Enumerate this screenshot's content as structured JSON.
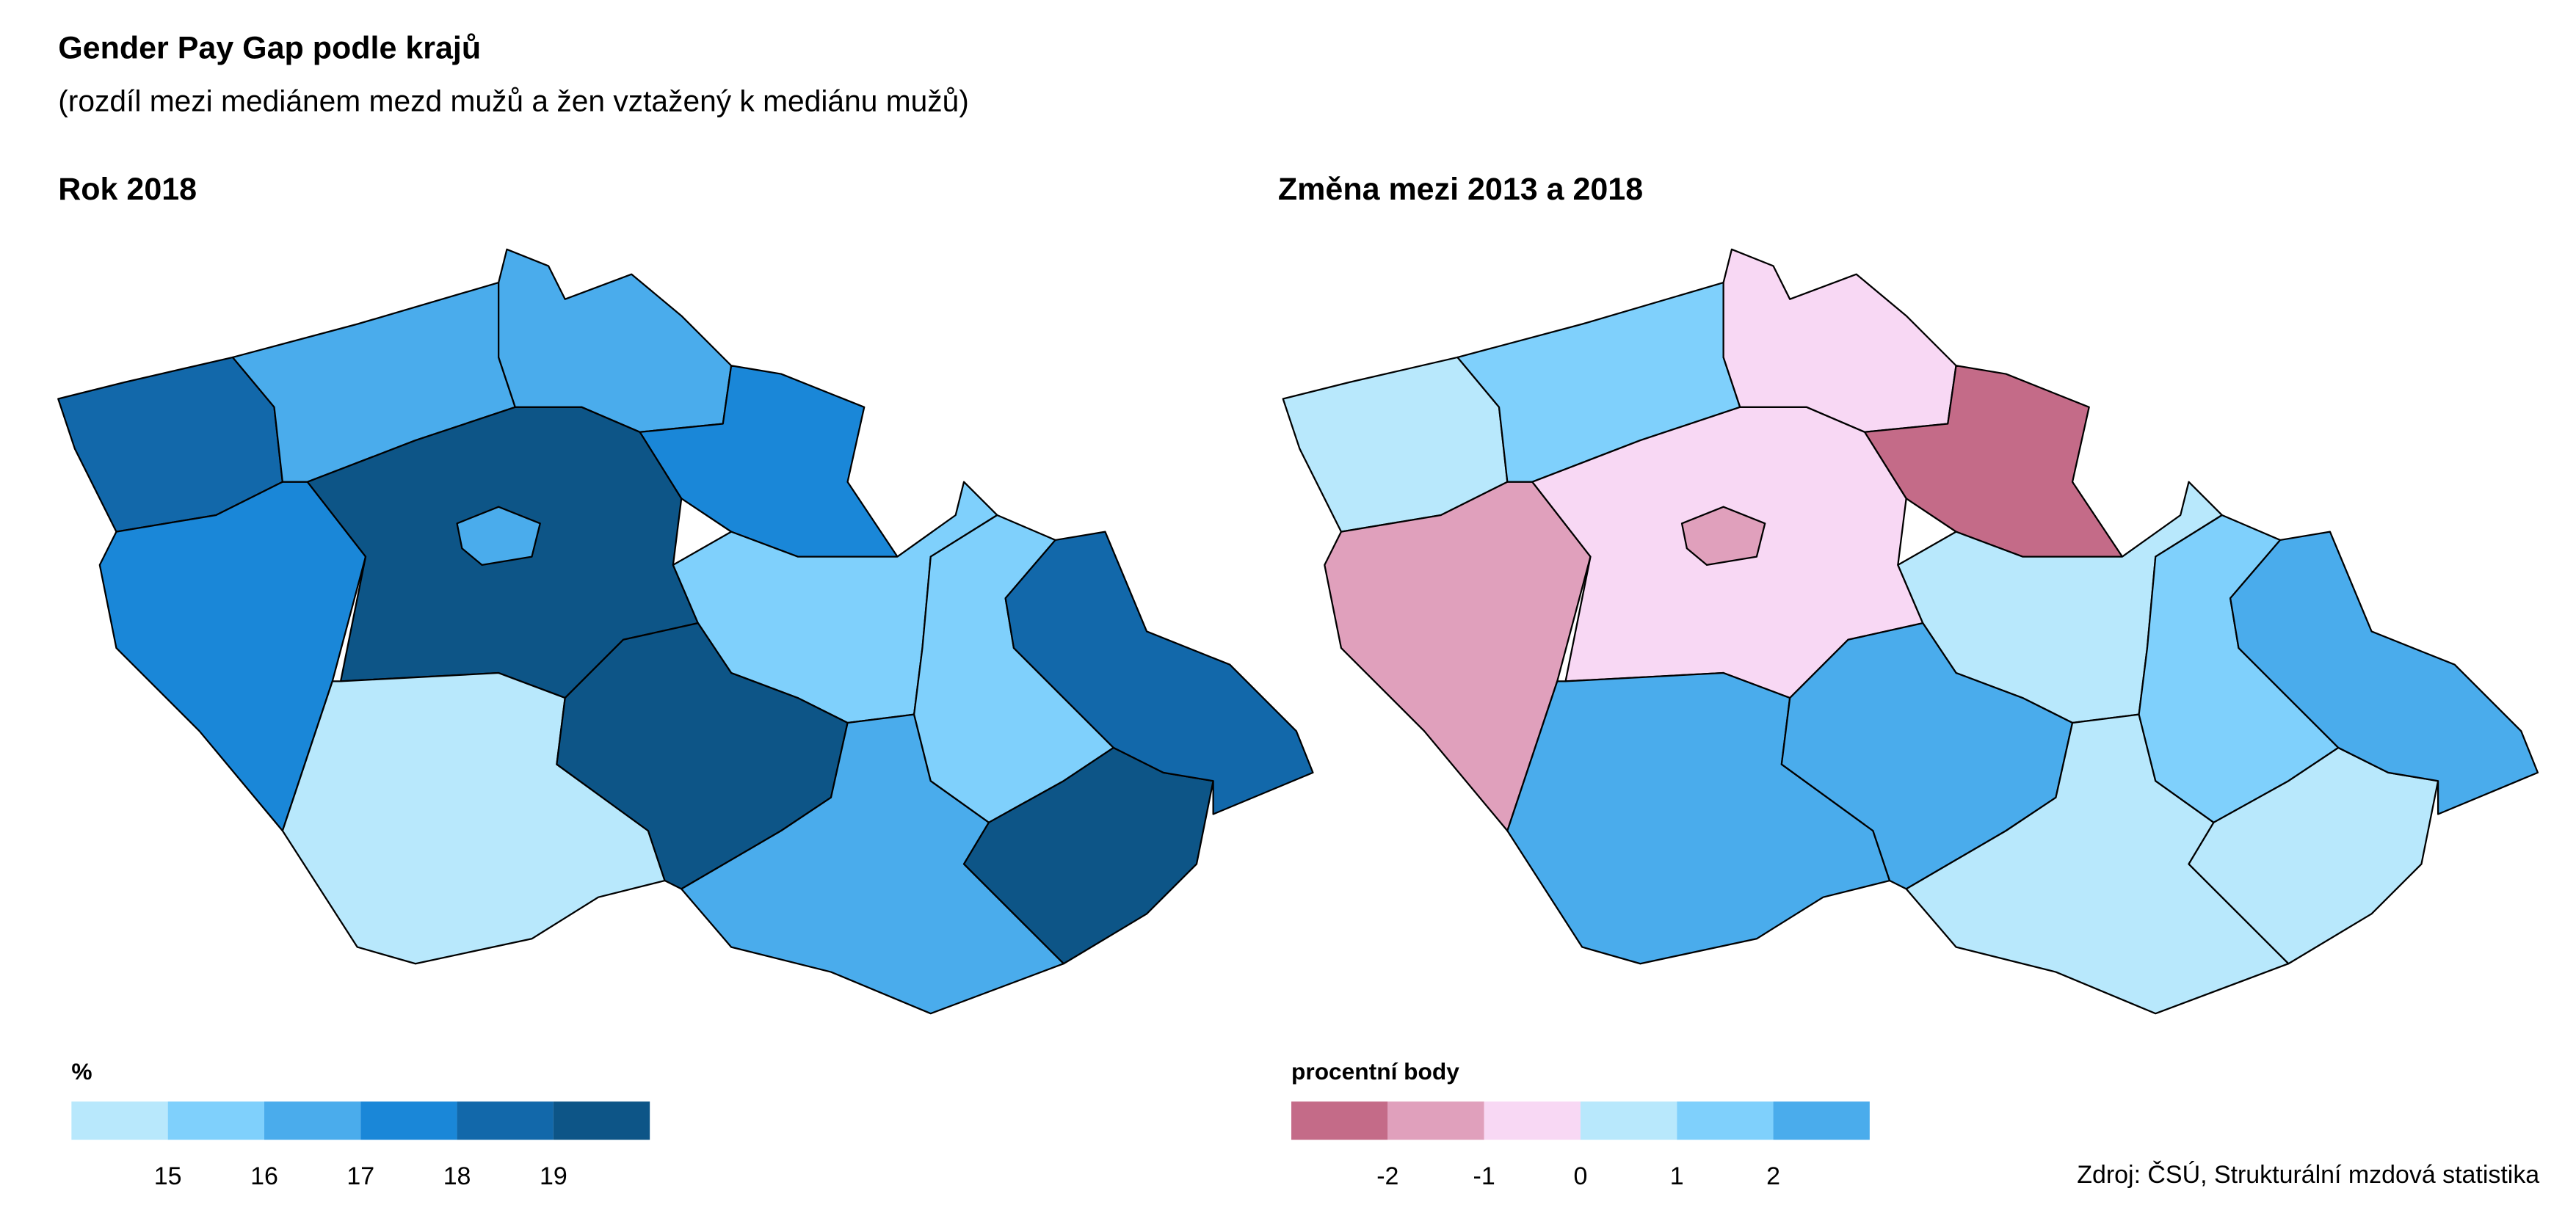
{
  "title": "Gender Pay Gap podle krajů",
  "subtitle": "(rozdíl mezi mediánem mezd mužů a žen vztažený k mediánu mužů)",
  "source": "Zdroj: ČSÚ, Strukturální mzdová statistika",
  "chart_data": [
    {
      "type": "choropleth",
      "title": "Rok 2018",
      "legend_title": "%",
      "legend_ticks": [
        15,
        16,
        17,
        18,
        19
      ],
      "colors": [
        "#b8e8fc",
        "#7fd0fc",
        "#4aacec",
        "#1a87d8",
        "#1268aa",
        "#0d5587"
      ],
      "values": [
        18.5,
        16.5,
        16.5,
        17.5,
        17.5,
        19.5,
        16.5,
        14.5,
        15.5,
        19.5,
        16.5,
        15.5,
        19.5,
        18.5
      ]
    },
    {
      "type": "choropleth",
      "title": "Změna mezi 2013 a 2018",
      "legend_title": "procentní body",
      "legend_ticks": [
        -2,
        -1,
        0,
        1,
        2
      ],
      "colors": [
        "#c46b88",
        "#e0a0bc",
        "#f8d8f4",
        "#b8e8fc",
        "#7fd0fc",
        "#4aacec"
      ],
      "values": [
        0.5,
        1.5,
        -0.5,
        -2.5,
        -1.5,
        -0.5,
        -1.5,
        2.5,
        0.5,
        2.5,
        0.5,
        1.5,
        0.5,
        2.5
      ]
    }
  ]
}
